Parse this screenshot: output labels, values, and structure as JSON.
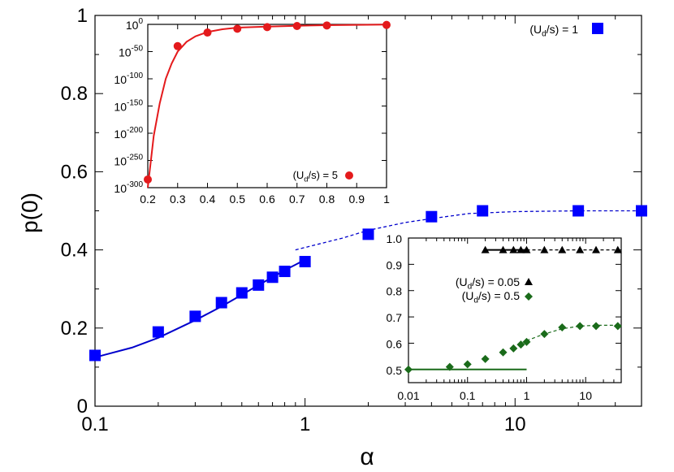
{
  "chart_data": [
    {
      "type": "scatter",
      "title": "",
      "xlabel": "α",
      "ylabel": "p(0)",
      "xscale": "log",
      "xlim": [
        0.1,
        40
      ],
      "ylim": [
        0,
        1
      ],
      "x_ticks": [
        {
          "v": 0.1,
          "label": "0.1"
        },
        {
          "v": 1,
          "label": "1"
        },
        {
          "v": 10,
          "label": "10"
        }
      ],
      "y_ticks": [
        {
          "v": 0,
          "label": "0"
        },
        {
          "v": 0.2,
          "label": "0.2"
        },
        {
          "v": 0.4,
          "label": "0.4"
        },
        {
          "v": 0.6,
          "label": "0.6"
        },
        {
          "v": 0.8,
          "label": "0.8"
        },
        {
          "v": 1,
          "label": "1"
        }
      ],
      "legend_position": "top-right",
      "series": [
        {
          "name": "(U_d/s) = 1",
          "marker": "square",
          "color": "#0000ff",
          "x": [
            0.1,
            0.2,
            0.3,
            0.4,
            0.5,
            0.6,
            0.7,
            0.8,
            1,
            2,
            4,
            7,
            20,
            40
          ],
          "y": [
            0.13,
            0.19,
            0.23,
            0.265,
            0.29,
            0.31,
            0.33,
            0.345,
            0.37,
            0.44,
            0.485,
            0.5,
            0.5,
            0.5
          ]
        }
      ],
      "solid_fit": {
        "color": "#0000cc",
        "x": [
          0.1,
          0.15,
          0.2,
          0.3,
          0.4,
          0.5,
          0.6,
          0.7,
          0.8,
          0.9,
          1
        ],
        "y": [
          0.125,
          0.15,
          0.175,
          0.22,
          0.255,
          0.285,
          0.31,
          0.33,
          0.348,
          0.362,
          0.375
        ]
      },
      "dashed_fit": {
        "color": "#0000cc",
        "x": [
          0.9,
          1.5,
          2,
          3,
          4,
          6,
          10,
          20,
          40
        ],
        "y": [
          0.4,
          0.43,
          0.45,
          0.47,
          0.48,
          0.493,
          0.498,
          0.5,
          0.5
        ]
      }
    },
    {
      "type": "scatter",
      "title": "",
      "xlabel": "",
      "ylabel": "",
      "yscale": "log",
      "xlim": [
        0.2,
        1
      ],
      "ylim_log10": [
        -300,
        0
      ],
      "x_ticks": [
        {
          "v": 0.2,
          "label": "0.2"
        },
        {
          "v": 0.3,
          "label": "0.3"
        },
        {
          "v": 0.4,
          "label": "0.4"
        },
        {
          "v": 0.5,
          "label": "0.5"
        },
        {
          "v": 0.6,
          "label": "0.6"
        },
        {
          "v": 0.7,
          "label": "0.7"
        },
        {
          "v": 0.8,
          "label": "0.8"
        },
        {
          "v": 0.9,
          "label": "0.9"
        },
        {
          "v": 1,
          "label": "1"
        }
      ],
      "y_ticks": [
        {
          "e": 0,
          "label": "0"
        },
        {
          "e": -50,
          "label": "-50"
        },
        {
          "e": -100,
          "label": "-100"
        },
        {
          "e": -150,
          "label": "-150"
        },
        {
          "e": -200,
          "label": "-200"
        },
        {
          "e": -250,
          "label": "-250"
        },
        {
          "e": -300,
          "label": "-300"
        }
      ],
      "legend_position": "bottom-right",
      "series": [
        {
          "name": "(U_d/s) = 5",
          "marker": "circle",
          "color": "#e41a1c",
          "x": [
            0.2,
            0.3,
            0.4,
            0.5,
            0.6,
            0.7,
            0.8,
            1.0
          ],
          "y_log10": [
            -285,
            -40,
            -15,
            -8,
            -5,
            -3,
            -2,
            -1
          ]
        }
      ],
      "solid_fit": {
        "color": "#e41a1c",
        "x": [
          0.2,
          0.22,
          0.24,
          0.26,
          0.28,
          0.3,
          0.33,
          0.36,
          0.4,
          0.45,
          0.5,
          0.6,
          0.7,
          0.8,
          1.0
        ],
        "y_log10": [
          -300,
          -205,
          -145,
          -100,
          -72,
          -50,
          -32,
          -22,
          -14,
          -9,
          -6,
          -4,
          -2.5,
          -1.5,
          -0.5
        ]
      }
    },
    {
      "type": "scatter",
      "title": "",
      "xlabel": "",
      "ylabel": "",
      "xscale": "log",
      "xlim": [
        0.01,
        40
      ],
      "ylim": [
        0.45,
        1.0
      ],
      "x_ticks": [
        {
          "v": 0.01,
          "label": "0.01"
        },
        {
          "v": 0.1,
          "label": "0.1"
        },
        {
          "v": 1,
          "label": "1"
        },
        {
          "v": 10,
          "label": "10"
        }
      ],
      "y_ticks": [
        {
          "v": 0.5,
          "label": "0.5"
        },
        {
          "v": 0.6,
          "label": "0.6"
        },
        {
          "v": 0.7,
          "label": "0.7"
        },
        {
          "v": 0.8,
          "label": "0.8"
        },
        {
          "v": 0.9,
          "label": "0.9"
        },
        {
          "v": 1.0,
          "label": "1.0"
        }
      ],
      "legend_position": "middle-left",
      "series": [
        {
          "name": "(U_d/s) = 0.05",
          "marker": "triangle",
          "color": "#000000",
          "x": [
            0.2,
            0.4,
            0.6,
            0.8,
            1,
            2,
            4,
            8,
            15,
            35
          ],
          "y": [
            0.955,
            0.955,
            0.955,
            0.955,
            0.955,
            0.955,
            0.955,
            0.955,
            0.955,
            0.955
          ]
        },
        {
          "name": "(U_d/s) = 0.5",
          "marker": "diamond",
          "color": "#1a6b1a",
          "x": [
            0.01,
            0.05,
            0.1,
            0.2,
            0.4,
            0.6,
            0.8,
            1,
            2,
            4,
            8,
            15,
            35
          ],
          "y": [
            0.5,
            0.51,
            0.52,
            0.54,
            0.565,
            0.58,
            0.595,
            0.605,
            0.635,
            0.66,
            0.665,
            0.665,
            0.665
          ]
        }
      ],
      "fits": [
        {
          "style": "solid",
          "color": "#000000",
          "x": [
            0.2,
            1
          ],
          "y": [
            0.955,
            0.955
          ]
        },
        {
          "style": "dashed",
          "color": "#000000",
          "x": [
            1,
            40
          ],
          "y": [
            0.955,
            0.955
          ]
        },
        {
          "style": "solid",
          "color": "#1a6b1a",
          "x": [
            0.01,
            1
          ],
          "y": [
            0.5,
            0.5
          ]
        },
        {
          "style": "dashed",
          "color": "#1a6b1a",
          "x": [
            1,
            2,
            4,
            8,
            15,
            40
          ],
          "y": [
            0.61,
            0.635,
            0.655,
            0.665,
            0.668,
            0.668
          ]
        }
      ]
    }
  ]
}
